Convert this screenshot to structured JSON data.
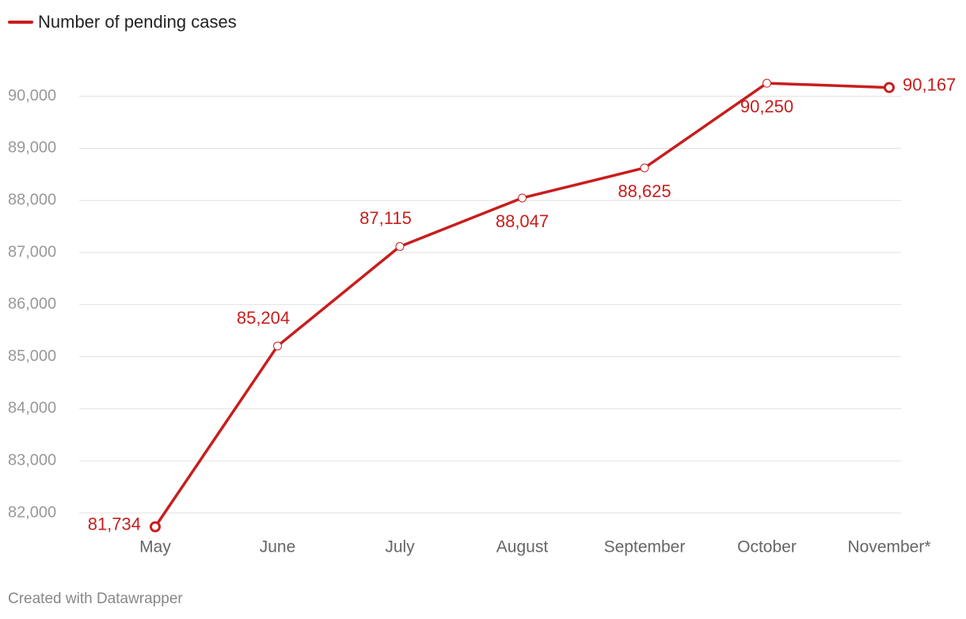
{
  "legend": {
    "label": "Number of pending cases",
    "color": "#c71e1d"
  },
  "footer": {
    "credit": "Created with Datawrapper"
  },
  "colors": {
    "series": "#c71e1d",
    "axis_text": "#999999",
    "x_text": "#666666",
    "gridline": "#e0e0e0",
    "footer_text": "#888888"
  },
  "chart_data": {
    "type": "line",
    "title": "",
    "xlabel": "",
    "ylabel": "",
    "categories": [
      "May",
      "June",
      "July",
      "August",
      "September",
      "October",
      "November*"
    ],
    "series": [
      {
        "name": "Number of pending cases",
        "values": [
          81734,
          85204,
          87115,
          88047,
          88625,
          90250,
          90167
        ],
        "labels": [
          "81,734",
          "85,204",
          "87,115",
          "88,047",
          "88,625",
          "90,250",
          "90,167"
        ],
        "label_positions": [
          "left",
          "above",
          "above",
          "below",
          "below",
          "below",
          "right"
        ]
      }
    ],
    "yticks": [
      82000,
      83000,
      84000,
      85000,
      86000,
      87000,
      88000,
      89000,
      90000
    ],
    "ytick_labels": [
      "82,000",
      "83,000",
      "84,000",
      "85,000",
      "86,000",
      "87,000",
      "88,000",
      "89,000",
      "90,000"
    ],
    "ylim": [
      81600,
      90500
    ],
    "grid": true,
    "legend_position": "top-left"
  }
}
